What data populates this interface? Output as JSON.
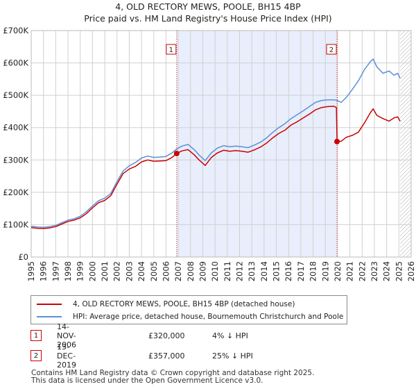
{
  "title_line1": "4, OLD RECTORY MEWS, POOLE, BH15 4BP",
  "title_line2": "Price paid vs. HM Land Registry's House Price Index (HPI)",
  "colors": {
    "property": "#cc0000",
    "hpi": "#5b8fd6",
    "shade": "#e8eefb",
    "hatch": "#aaaaaa",
    "grid": "#d0d0d0"
  },
  "chart_data": {
    "type": "line",
    "x_range": [
      1995,
      2026
    ],
    "ylim": [
      0,
      700000
    ],
    "y_ticks": [
      0,
      100000,
      200000,
      300000,
      400000,
      500000,
      600000,
      700000
    ],
    "y_tick_labels": [
      "£0",
      "£100K",
      "£200K",
      "£300K",
      "£400K",
      "£500K",
      "£600K",
      "£700K"
    ],
    "x_ticks": [
      1995,
      1996,
      1997,
      1998,
      1999,
      2000,
      2001,
      2002,
      2003,
      2004,
      2005,
      2006,
      2007,
      2008,
      2009,
      2010,
      2011,
      2012,
      2013,
      2014,
      2015,
      2016,
      2017,
      2018,
      2019,
      2020,
      2021,
      2022,
      2023,
      2024,
      2025,
      2026
    ],
    "shaded_range": [
      2006.87,
      2019.95
    ],
    "hatch_from": 2025.1,
    "series": [
      {
        "name": "4, OLD RECTORY MEWS, POOLE, BH15 4BP (detached house)",
        "x": [
          1995,
          1995.5,
          1996,
          1996.5,
          1997,
          1997.5,
          1998,
          1998.5,
          1999,
          1999.5,
          2000,
          2000.5,
          2001,
          2001.5,
          2002,
          2002.5,
          2003,
          2003.5,
          2004,
          2004.5,
          2005,
          2005.5,
          2006,
          2006.5,
          2006.87,
          2007.3,
          2007.8,
          2008.3,
          2008.7,
          2009.2,
          2009.7,
          2010.2,
          2010.7,
          2011.2,
          2011.7,
          2012.2,
          2012.7,
          2013.2,
          2013.7,
          2014.2,
          2014.7,
          2015.2,
          2015.7,
          2016.2,
          2016.7,
          2017.2,
          2017.7,
          2018.2,
          2018.7,
          2019.2,
          2019.7,
          2019.9,
          2019.95,
          2020.3,
          2020.7,
          2021.2,
          2021.7,
          2022.2,
          2022.7,
          2022.9,
          2023.2,
          2023.7,
          2024.2,
          2024.6,
          2024.9,
          2025.1
        ],
        "y": [
          91000,
          89000,
          88000,
          90000,
          94000,
          102000,
          110000,
          114000,
          121000,
          134000,
          152000,
          168000,
          175000,
          190000,
          225000,
          258000,
          272000,
          280000,
          294000,
          300000,
          296000,
          297000,
          298000,
          308000,
          320000,
          328000,
          332000,
          316000,
          300000,
          283000,
          308000,
          322000,
          330000,
          327000,
          329000,
          327000,
          324000,
          331000,
          340000,
          352000,
          368000,
          382000,
          392000,
          408000,
          418000,
          430000,
          442000,
          455000,
          462000,
          465000,
          466000,
          462000,
          357000,
          358000,
          370000,
          376000,
          386000,
          415000,
          448000,
          458000,
          438000,
          428000,
          420000,
          430000,
          433000,
          420000
        ]
      },
      {
        "name": "HPI: Average price, detached house, Bournemouth Christchurch and Poole",
        "x": [
          1995,
          1995.5,
          1996,
          1996.5,
          1997,
          1997.5,
          1998,
          1998.5,
          1999,
          1999.5,
          2000,
          2000.5,
          2001,
          2001.5,
          2002,
          2002.5,
          2003,
          2003.5,
          2004,
          2004.5,
          2005,
          2005.5,
          2006,
          2006.5,
          2006.87,
          2007.3,
          2007.8,
          2008.3,
          2008.7,
          2009.2,
          2009.7,
          2010.2,
          2010.7,
          2011.2,
          2011.7,
          2012.2,
          2012.7,
          2013.2,
          2013.7,
          2014.2,
          2014.7,
          2015.2,
          2015.7,
          2016.2,
          2016.7,
          2017.2,
          2017.7,
          2018.2,
          2018.7,
          2019.2,
          2019.7,
          2019.95,
          2020.3,
          2020.7,
          2021.2,
          2021.7,
          2022.2,
          2022.7,
          2022.9,
          2023.2,
          2023.7,
          2024.2,
          2024.6,
          2024.9,
          2025.1
        ],
        "y": [
          95000,
          93000,
          92000,
          94000,
          98000,
          106000,
          114000,
          118000,
          126000,
          140000,
          158000,
          174000,
          182000,
          197000,
          233000,
          266000,
          282000,
          292000,
          306000,
          312000,
          308000,
          309000,
          311000,
          322000,
          334000,
          343000,
          348000,
          332000,
          315000,
          298000,
          322000,
          337000,
          344000,
          341000,
          343000,
          341000,
          338000,
          346000,
          355000,
          368000,
          385000,
          400000,
          412000,
          428000,
          440000,
          452000,
          465000,
          478000,
          484000,
          486000,
          486000,
          484000,
          478000,
          493000,
          518000,
          545000,
          580000,
          605000,
          612000,
          588000,
          568000,
          575000,
          562000,
          568000,
          553000
        ]
      }
    ],
    "sales": [
      {
        "label": "1",
        "year": 2006.87,
        "price": 320000
      },
      {
        "label": "2",
        "year": 2019.95,
        "price": 357000
      }
    ]
  },
  "legend": {
    "property_label": "4, OLD RECTORY MEWS, POOLE, BH15 4BP (detached house)",
    "hpi_label": "HPI: Average price, detached house, Bournemouth Christchurch and Poole"
  },
  "sales_table": [
    {
      "num": "1",
      "date": "14-NOV-2006",
      "price": "£320,000",
      "hpi": "4% ↓ HPI"
    },
    {
      "num": "2",
      "date": "13-DEC-2019",
      "price": "£357,000",
      "hpi": "25% ↓ HPI"
    }
  ],
  "footer": {
    "line1": "Contains HM Land Registry data © Crown copyright and database right 2025.",
    "line2": "This data is licensed under the Open Government Licence v3.0."
  }
}
